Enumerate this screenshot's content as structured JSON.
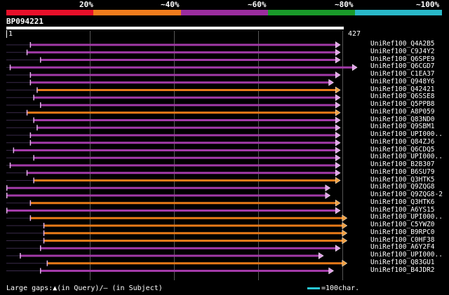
{
  "scale": {
    "labels": [
      "20%",
      "~40%",
      "~60%",
      "~80%",
      "~100%"
    ],
    "colors": [
      "#e8102a",
      "#f07c1d",
      "#9b2d9e",
      "#1a9a2a",
      "#29b8c8"
    ]
  },
  "query": {
    "name": "BP094221",
    "start_label": "1",
    "end_label": "427",
    "length": 427
  },
  "colors": {
    "purple": "#a23aa8",
    "orange": "#e87a18",
    "arrow": "#e0a0e8",
    "dark": "#6b2a74"
  },
  "hits": [
    {
      "label": "UniRef100_Q4A2B5",
      "s": 0.07,
      "e": 0.99,
      "color": "purple"
    },
    {
      "label": "UniRef100_C9J4Y2",
      "s": 0.06,
      "e": 0.99,
      "color": "purple"
    },
    {
      "label": "UniRef100_Q6SPE9",
      "s": 0.1,
      "e": 0.99,
      "color": "purple"
    },
    {
      "label": "UniRef100_Q6CGD7",
      "s": 0.01,
      "e": 1.04,
      "color": "purple"
    },
    {
      "label": "UniRef100_C1EA37",
      "s": 0.07,
      "e": 0.99,
      "color": "purple"
    },
    {
      "label": "UniRef100_Q948Y6",
      "s": 0.07,
      "e": 0.97,
      "color": "purple"
    },
    {
      "label": "UniRef100_Q42421",
      "s": 0.09,
      "e": 0.99,
      "color": "orange"
    },
    {
      "label": "UniRef100_Q6SSE8",
      "s": 0.08,
      "e": 0.99,
      "color": "purple"
    },
    {
      "label": "UniRef100_Q5PPB8",
      "s": 0.1,
      "e": 0.99,
      "color": "purple"
    },
    {
      "label": "UniRef100_A8P059",
      "s": 0.06,
      "e": 0.99,
      "color": "orange"
    },
    {
      "label": "UniRef100_Q83ND0",
      "s": 0.08,
      "e": 0.99,
      "color": "purple"
    },
    {
      "label": "UniRef100_Q9SBM1",
      "s": 0.09,
      "e": 0.99,
      "color": "purple"
    },
    {
      "label": "UniRef100_UPI000..",
      "s": 0.07,
      "e": 0.99,
      "color": "purple"
    },
    {
      "label": "UniRef100_Q84ZJ6",
      "s": 0.07,
      "e": 0.99,
      "color": "purple"
    },
    {
      "label": "UniRef100_Q6CDQ5",
      "s": 0.02,
      "e": 0.99,
      "color": "purple"
    },
    {
      "label": "UniRef100_UPI000..",
      "s": 0.08,
      "e": 0.99,
      "color": "purple"
    },
    {
      "label": "UniRef100_B2B307",
      "s": 0.01,
      "e": 0.99,
      "color": "purple"
    },
    {
      "label": "UniRef100_B6SU79",
      "s": 0.06,
      "e": 0.99,
      "color": "purple"
    },
    {
      "label": "UniRef100_Q3HTK5",
      "s": 0.08,
      "e": 0.99,
      "color": "orange"
    },
    {
      "label": "UniRef100_Q9ZQG8",
      "s": 0.0,
      "e": 0.96,
      "color": "purple"
    },
    {
      "label": "UniRef100_Q9ZQG8-2",
      "s": 0.0,
      "e": 0.96,
      "color": "purple"
    },
    {
      "label": "UniRef100_Q3HTK6",
      "s": 0.07,
      "e": 0.99,
      "color": "orange"
    },
    {
      "label": "UniRef100_A6YS15",
      "s": 0.0,
      "e": 0.99,
      "color": "purple"
    },
    {
      "label": "UniRef100_UPI000..",
      "s": 0.07,
      "e": 1.01,
      "color": "orange"
    },
    {
      "label": "UniRef100_C5YWZ0",
      "s": 0.11,
      "e": 1.01,
      "color": "orange"
    },
    {
      "label": "UniRef100_B9RPC0",
      "s": 0.11,
      "e": 1.01,
      "color": "orange"
    },
    {
      "label": "UniRef100_C0HF38",
      "s": 0.11,
      "e": 1.01,
      "color": "orange"
    },
    {
      "label": "UniRef100_A6Y2F4",
      "s": 0.1,
      "e": 0.99,
      "color": "purple"
    },
    {
      "label": "UniRef100_UPI000..",
      "s": 0.04,
      "e": 0.94,
      "color": "purple"
    },
    {
      "label": "UniRef100_Q83GU1",
      "s": 0.12,
      "e": 1.01,
      "color": "orange"
    },
    {
      "label": "UniRef100_B4JDR2",
      "s": 0.1,
      "e": 0.97,
      "color": "purple"
    }
  ],
  "legend": {
    "text": "Large gaps:▲(in Query)/– (in Subject)",
    "scale_text": "=100char."
  }
}
